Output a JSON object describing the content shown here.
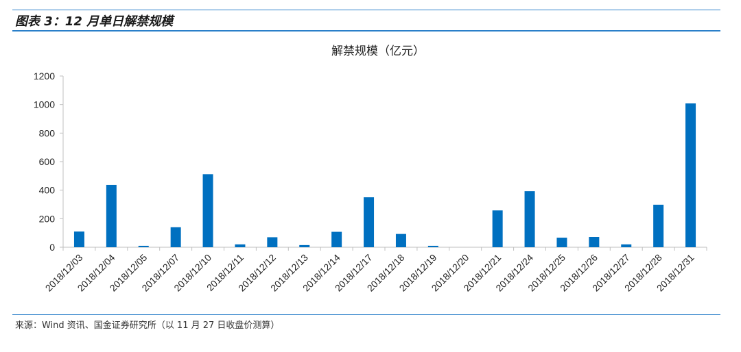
{
  "figure": {
    "title": "图表 3：12 月单日解禁规模",
    "source": "来源：Wind 资讯、国金证券研究所（以 11 月 27 日收盘价测算）"
  },
  "colors": {
    "bar": "#0070c0",
    "rule": "#2a7fc9",
    "axis": "#bfbfbf"
  },
  "chart_data": {
    "type": "bar",
    "title": "解禁规模（亿元）",
    "xlabel": "",
    "ylabel": "",
    "ylim": [
      0,
      1200
    ],
    "yticks": [
      0,
      200,
      400,
      600,
      800,
      1000,
      1200
    ],
    "grid": false,
    "legend": "none",
    "categories": [
      "2018/12/03",
      "2018/12/04",
      "2018/12/05",
      "2018/12/07",
      "2018/12/10",
      "2018/12/11",
      "2018/12/12",
      "2018/12/13",
      "2018/12/14",
      "2018/12/17",
      "2018/12/18",
      "2018/12/19",
      "2018/12/20",
      "2018/12/21",
      "2018/12/24",
      "2018/12/25",
      "2018/12/26",
      "2018/12/27",
      "2018/12/28",
      "2018/12/31"
    ],
    "values": [
      110,
      437,
      10,
      140,
      512,
      20,
      70,
      15,
      108,
      350,
      93,
      10,
      0,
      258,
      393,
      67,
      72,
      20,
      298,
      1008
    ]
  }
}
